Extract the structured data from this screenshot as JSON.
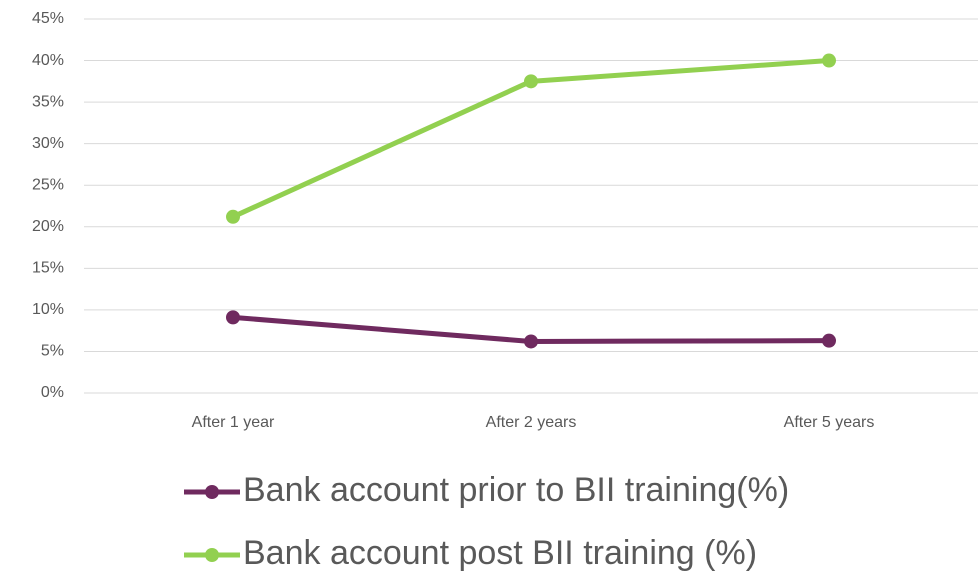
{
  "chart_data": {
    "type": "line",
    "categories": [
      "After 1 year",
      "After 2 years",
      "After 5 years"
    ],
    "series": [
      {
        "name": "Bank account prior to BII training(%)",
        "color": "#6f2a5f",
        "values": [
          9.1,
          6.2,
          6.3
        ]
      },
      {
        "name": "Bank account post BII training (%)",
        "color": "#92d050",
        "values": [
          21.2,
          37.5,
          40
        ]
      }
    ],
    "ylim": [
      0,
      45
    ],
    "yticks": [
      {
        "value": 0,
        "label": "0%"
      },
      {
        "value": 5,
        "label": "5%"
      },
      {
        "value": 10,
        "label": "10%"
      },
      {
        "value": 15,
        "label": "15%"
      },
      {
        "value": 20,
        "label": "20%"
      },
      {
        "value": 25,
        "label": "25%"
      },
      {
        "value": 30,
        "label": "30%"
      },
      {
        "value": 35,
        "label": "35%"
      },
      {
        "value": 40,
        "label": "40%"
      },
      {
        "value": 45,
        "label": "45%"
      }
    ],
    "grid": true
  }
}
